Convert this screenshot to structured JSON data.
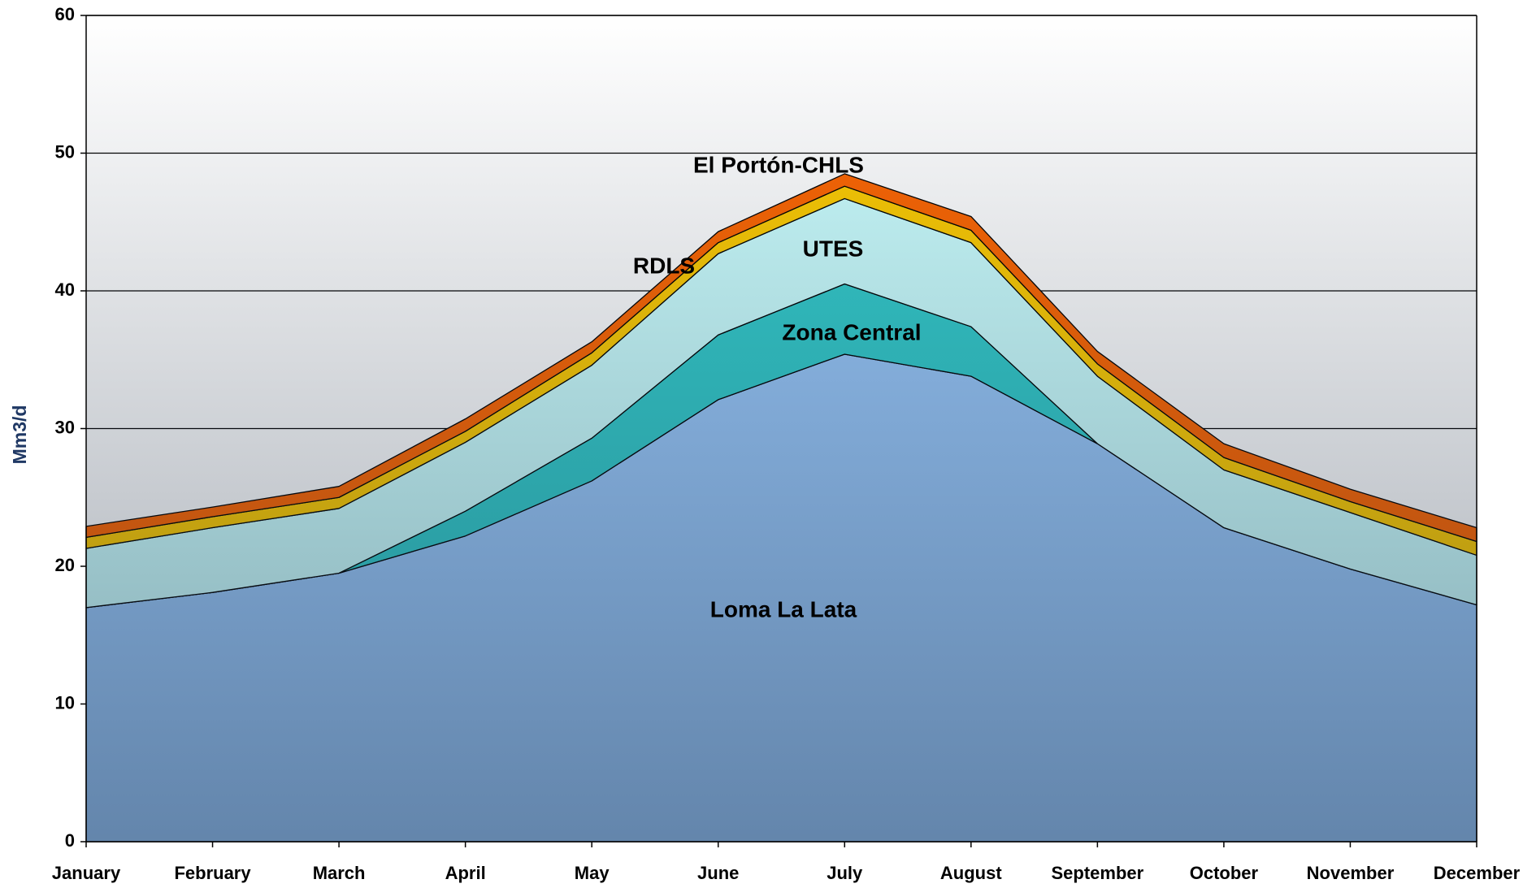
{
  "chart_data": {
    "type": "stacked_area",
    "y_label": "Mm3/d",
    "categories": [
      "January",
      "February",
      "March",
      "April",
      "May",
      "June",
      "July",
      "August",
      "September",
      "October",
      "November",
      "December"
    ],
    "series": [
      {
        "name": "Loma La Lata",
        "color": "#99c8fa",
        "values": [
          17.0,
          18.1,
          19.5,
          22.2,
          26.2,
          32.1,
          35.4,
          33.8,
          28.9,
          22.8,
          19.8,
          17.2
        ]
      },
      {
        "name": "Zona Central",
        "color": "#33cccc",
        "values": [
          0,
          0,
          0,
          1.8,
          3.1,
          4.7,
          5.1,
          3.6,
          0,
          0,
          0,
          0
        ]
      },
      {
        "name": "UTES",
        "color": "#ccffff",
        "values": [
          4.3,
          4.7,
          4.7,
          5.0,
          5.3,
          5.9,
          6.2,
          6.1,
          4.9,
          4.2,
          4.1,
          3.6
        ]
      },
      {
        "name": "RDLS",
        "color": "#ffcc00",
        "values": [
          0.8,
          0.8,
          0.8,
          0.8,
          0.9,
          0.8,
          0.9,
          0.9,
          0.9,
          0.9,
          0.8,
          1.0
        ]
      },
      {
        "name": "El Portón-CHLS",
        "color": "#ff6600",
        "values": [
          0.8,
          0.7,
          0.8,
          0.9,
          0.8,
          0.8,
          0.9,
          1.0,
          0.9,
          1.0,
          0.9,
          1.0
        ]
      }
    ],
    "ylim": [
      0,
      60
    ],
    "yticks": [
      0,
      10,
      20,
      30,
      40,
      50,
      60
    ],
    "grid": true
  }
}
